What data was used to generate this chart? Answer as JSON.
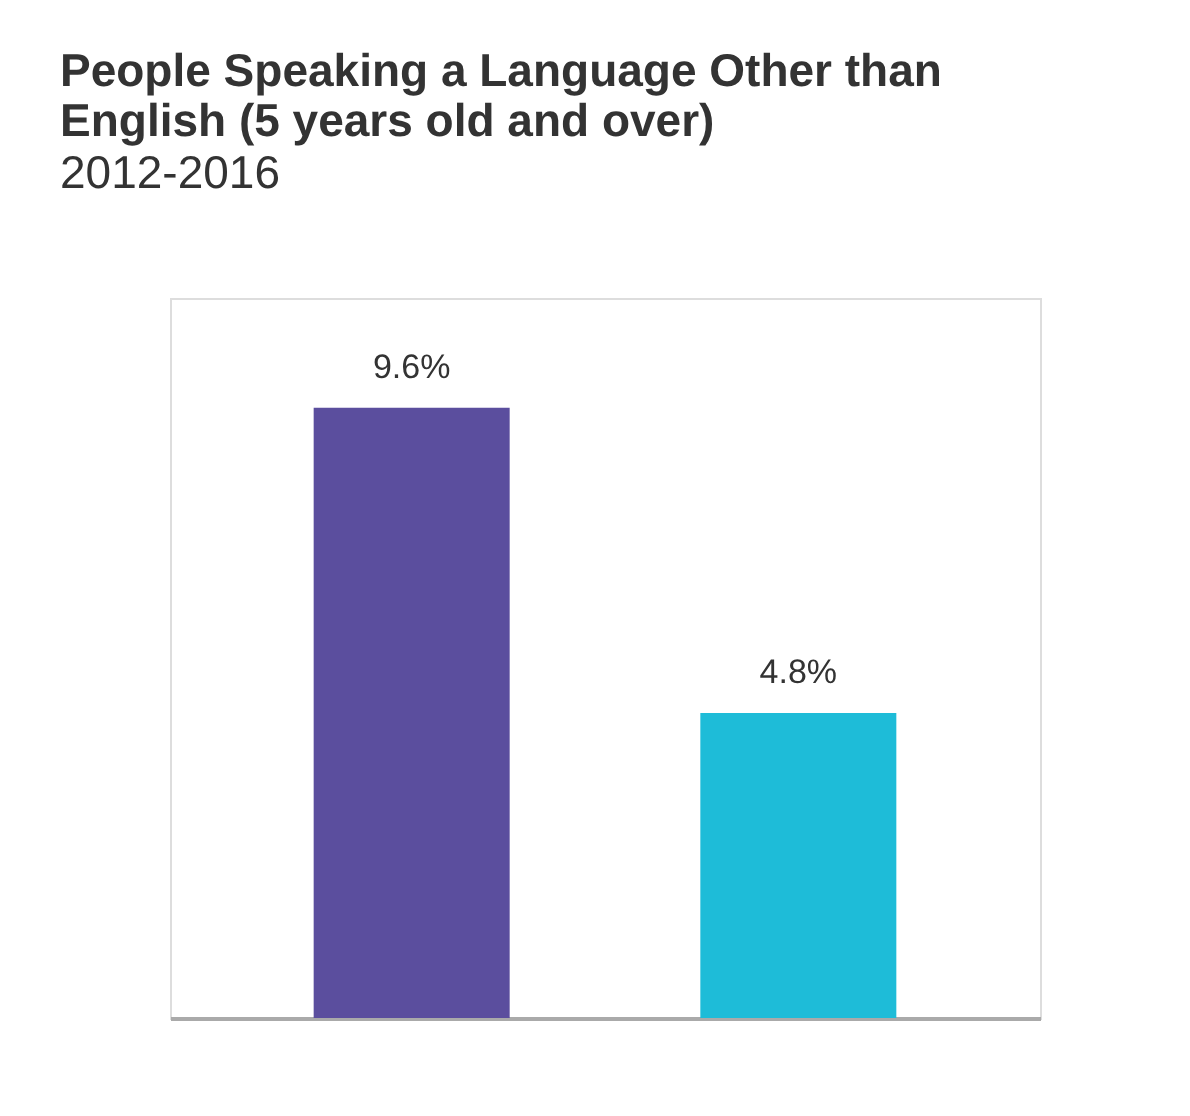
{
  "chart_data": {
    "type": "bar",
    "title": "People Speaking a Language Other than English (5 years old and over)",
    "subtitle": "2012-2016",
    "categories": [
      null,
      null
    ],
    "values": [
      9.6,
      4.8
    ],
    "colors": [
      "#5b4e9e",
      "#1ebcd8"
    ],
    "value_labels": [
      "9.6%",
      "4.8%"
    ]
  }
}
